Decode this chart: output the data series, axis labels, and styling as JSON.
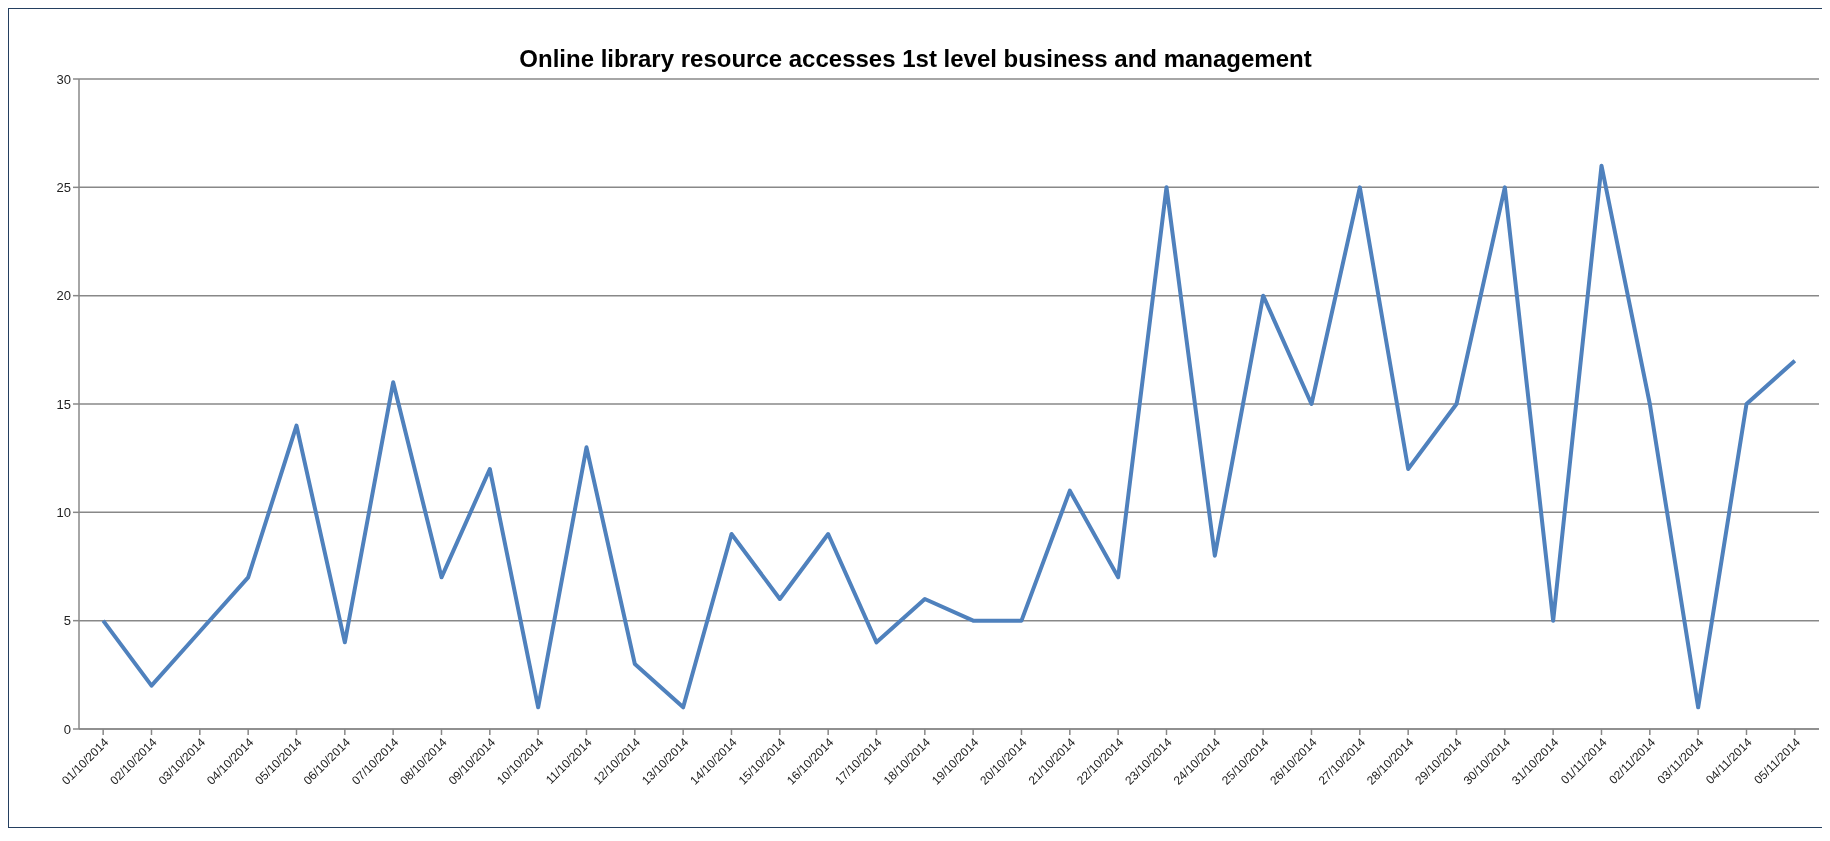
{
  "chart_data": {
    "type": "line",
    "title": "Online library resource accesses 1st level business and management",
    "categories": [
      "01/10/2014",
      "02/10/2014",
      "03/10/2014",
      "04/10/2014",
      "05/10/2014",
      "06/10/2014",
      "07/10/2014",
      "08/10/2014",
      "09/10/2014",
      "10/10/2014",
      "11/10/2014",
      "12/10/2014",
      "13/10/2014",
      "14/10/2014",
      "15/10/2014",
      "16/10/2014",
      "17/10/2014",
      "18/10/2014",
      "19/10/2014",
      "20/10/2014",
      "21/10/2014",
      "22/10/2014",
      "23/10/2014",
      "24/10/2014",
      "25/10/2014",
      "26/10/2014",
      "27/10/2014",
      "28/10/2014",
      "29/10/2014",
      "30/10/2014",
      "31/10/2014",
      "01/11/2014",
      "02/11/2014",
      "03/11/2014",
      "04/11/2014",
      "05/11/2014"
    ],
    "series": [
      {
        "color": "#4f81bd",
        "values": [
          5,
          2,
          4.5,
          7,
          14,
          4,
          16,
          7,
          12,
          1,
          13,
          3,
          1,
          9,
          6,
          9,
          4,
          6,
          5,
          5,
          11,
          7,
          25,
          8,
          20,
          15,
          25,
          12,
          15,
          25,
          5,
          26,
          15,
          1,
          15,
          17
        ]
      }
    ],
    "ylim": [
      0,
      30
    ],
    "yticks": [
      0,
      5,
      10,
      15,
      20,
      25,
      30
    ],
    "grid": "y",
    "legend": false,
    "marker": "none",
    "line_style": "solid"
  }
}
